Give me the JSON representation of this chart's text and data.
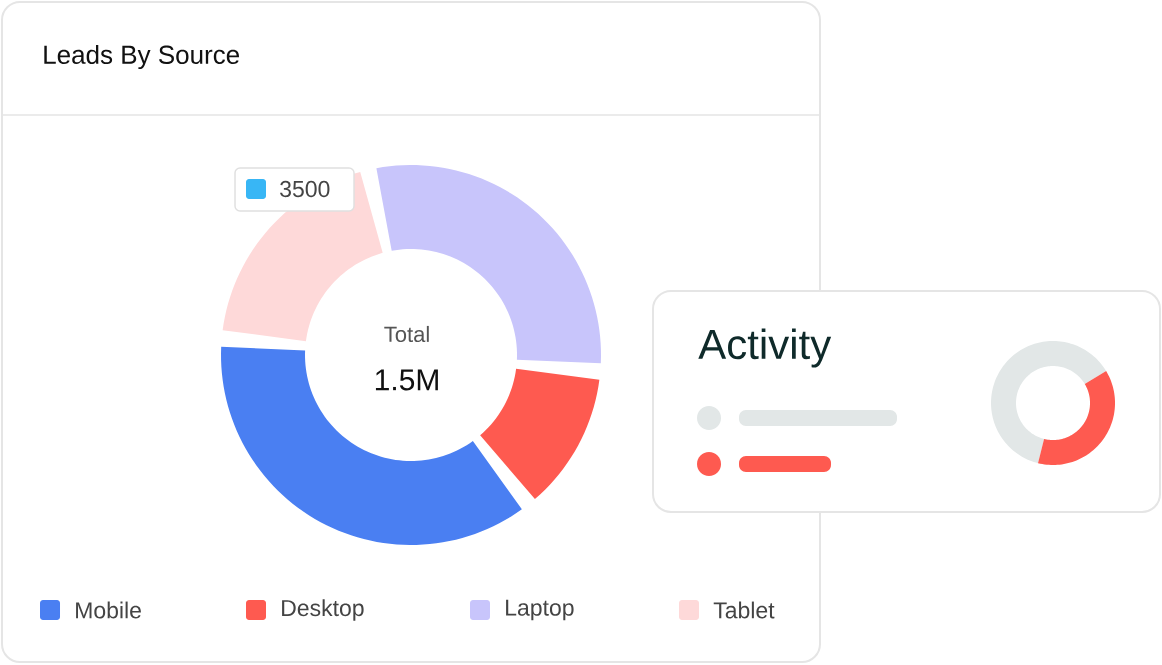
{
  "chart_data": [
    {
      "type": "donut",
      "title": "Leads By Source",
      "categories": [
        "Mobile",
        "Desktop",
        "Laptop",
        "Tablet"
      ],
      "values": [
        37,
        13,
        30,
        20
      ],
      "colors": [
        "#4a7ff2",
        "#fe5a50",
        "#c8c5fb",
        "#fed9d9"
      ],
      "legend": "bottom",
      "annotations": [
        "3500",
        "Total",
        "1.5M"
      ]
    },
    {
      "type": "donut",
      "title": "Activity",
      "categories": [
        null,
        null
      ],
      "values": [
        62.5,
        37.5
      ],
      "colors": [
        "#e2e7e7",
        "#fe5a50"
      ]
    }
  ]
}
